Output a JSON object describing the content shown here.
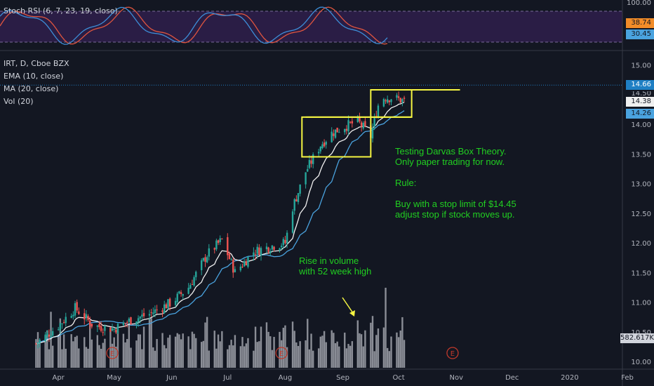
{
  "header": {
    "stoch_legend": "Stoch RSI (6, 7, 23, 19, close)",
    "symbol_legend": "IRT, D, Cboe BZX",
    "ema_legend": "EMA (10, close)",
    "ma_legend": "MA (20, close)",
    "vol_legend": "Vol (20)"
  },
  "tags": {
    "stoch_top": "100.00",
    "stoch_k": "38.74",
    "stoch_d": "30.45",
    "price_high": "14.66",
    "price_partial": "14.50",
    "price_last": "14.38",
    "price_ma": "14.26",
    "volume": "582.617K"
  },
  "colors": {
    "background": "#131722",
    "up": "#26a69a",
    "down": "#ef5350",
    "ema": "#f0f0f0",
    "ma": "#4aa3df",
    "box": "#f5f542",
    "annotation": "#21d021",
    "stoch_k": "#3d8ed8",
    "stoch_d": "#e0553f",
    "stoch_bg": "#2a1d45",
    "earnings": "#c0392b"
  },
  "annotations": {
    "darvas_note": [
      "Testing Darvas Box Theory.",
      "Only paper trading for now.",
      "",
      "Rule:",
      "",
      "Buy with a stop limit of $14.45",
      "adjust stop if stock moves up."
    ],
    "volume_note": [
      "Rise in volume",
      "with 52 week high"
    ],
    "earnings_marker": "E"
  },
  "chart_data": {
    "type": "candlestick",
    "symbol": "IRT",
    "interval": "D",
    "exchange": "Cboe BZX",
    "x_tick_labels": [
      "Apr",
      "May",
      "Jun",
      "Jul",
      "Aug",
      "Sep",
      "Oct",
      "Nov",
      "Dec",
      "2020",
      "Feb"
    ],
    "price_axis": {
      "range": [
        9.95,
        15.2
      ],
      "ticks": [
        "15.00",
        "14.50",
        "14.00",
        "13.50",
        "13.00",
        "12.50",
        "12.00",
        "11.50",
        "11.00",
        "10.50",
        "10.00"
      ]
    },
    "stoch_rsi": {
      "range": [
        0,
        100
      ],
      "upper_band": 80,
      "lower_band": 20,
      "k_last": 38.74,
      "d_last": 30.45
    },
    "series_price_path": {
      "x": [
        "2019-03-20",
        "2019-04-01",
        "2019-04-10",
        "2019-04-20",
        "2019-05-01",
        "2019-05-10",
        "2019-05-20",
        "2019-06-01",
        "2019-06-10",
        "2019-06-20",
        "2019-06-28",
        "2019-07-05",
        "2019-07-15",
        "2019-07-25",
        "2019-08-01",
        "2019-08-05",
        "2019-08-12",
        "2019-08-20",
        "2019-08-26",
        "2019-09-01",
        "2019-09-09",
        "2019-09-16",
        "2019-09-21",
        "2019-09-28",
        "2019-10-05"
      ],
      "close": [
        10.3,
        10.6,
        10.9,
        10.6,
        10.55,
        10.7,
        10.8,
        11.0,
        11.25,
        11.8,
        12.05,
        11.5,
        11.85,
        11.95,
        12.0,
        12.6,
        13.2,
        13.65,
        13.85,
        13.95,
        14.05,
        13.8,
        14.45,
        14.45,
        14.38
      ]
    },
    "volume_ymax_K": 1700,
    "darvas_boxes": [
      {
        "x_start": "2019-08-10",
        "x_end": "2019-09-16",
        "top": 14.12,
        "bottom": 13.45
      },
      {
        "x_start": "2019-09-16",
        "x_end": "2019-10-08",
        "top": 14.58,
        "bottom": 14.12
      }
    ],
    "high_line": 14.58,
    "earnings_dates": [
      "2019-04-30",
      "2019-07-30",
      "2019-10-30"
    ]
  }
}
